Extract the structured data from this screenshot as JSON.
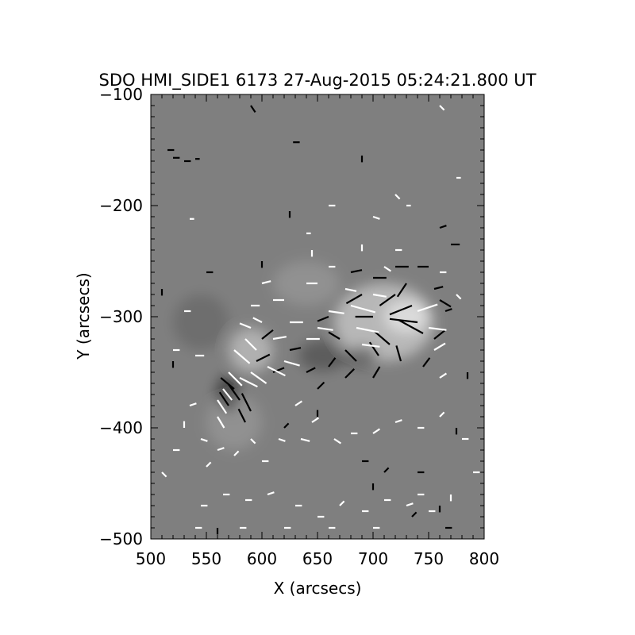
{
  "chart_data": {
    "type": "vector_magnetogram",
    "title": "SDO HMI_SIDE1 6173 27-Aug-2015 05:24:21.800 UT",
    "xlabel": "X (arcsecs)",
    "ylabel": "Y (arcsecs)",
    "xlim": [
      500,
      800
    ],
    "ylim": [
      -500,
      -100
    ],
    "x_ticks": [
      {
        "value": 500,
        "label": "500"
      },
      {
        "value": 550,
        "label": "550"
      },
      {
        "value": 600,
        "label": "600"
      },
      {
        "value": 650,
        "label": "650"
      },
      {
        "value": 700,
        "label": "700"
      },
      {
        "value": 750,
        "label": "750"
      },
      {
        "value": 800,
        "label": "800"
      }
    ],
    "y_ticks": [
      {
        "value": -100,
        "label": "−100"
      },
      {
        "value": -200,
        "label": "−200"
      },
      {
        "value": -300,
        "label": "−300"
      },
      {
        "value": -400,
        "label": "−400"
      },
      {
        "value": -500,
        "label": "−500"
      }
    ],
    "background_color": "#7f7f7f",
    "colors": {
      "positive_polarity": "#ffffff",
      "negative_polarity": "#000000"
    },
    "polarity_patches": [
      {
        "x": 710,
        "y": -305,
        "rx": 45,
        "ry": 35,
        "polarity": "positive",
        "strength": 0.8
      },
      {
        "x": 730,
        "y": -300,
        "rx": 20,
        "ry": 15,
        "polarity": "positive",
        "strength": 0.9
      },
      {
        "x": 590,
        "y": -330,
        "rx": 20,
        "ry": 20,
        "polarity": "positive",
        "strength": 0.7
      },
      {
        "x": 570,
        "y": -370,
        "rx": 12,
        "ry": 18,
        "polarity": "negative",
        "strength": 0.8
      },
      {
        "x": 655,
        "y": -335,
        "rx": 22,
        "ry": 14,
        "polarity": "negative",
        "strength": 0.5
      },
      {
        "x": 690,
        "y": -335,
        "rx": 15,
        "ry": 10,
        "polarity": "negative",
        "strength": 0.6
      },
      {
        "x": 575,
        "y": -395,
        "rx": 25,
        "ry": 25,
        "polarity": "positive",
        "strength": 0.25
      },
      {
        "x": 545,
        "y": -305,
        "rx": 25,
        "ry": 25,
        "polarity": "negative",
        "strength": 0.25
      },
      {
        "x": 640,
        "y": -270,
        "rx": 30,
        "ry": 20,
        "polarity": "positive",
        "strength": 0.25
      }
    ],
    "vectors": [
      {
        "x": 735,
        "y": -290,
        "dx": -20,
        "dy": -8,
        "color": "black"
      },
      {
        "x": 740,
        "y": -305,
        "dx": -25,
        "dy": 3,
        "color": "black"
      },
      {
        "x": 745,
        "y": -315,
        "dx": -22,
        "dy": 12,
        "color": "black"
      },
      {
        "x": 720,
        "y": -280,
        "dx": -14,
        "dy": -10,
        "color": "black"
      },
      {
        "x": 715,
        "y": -325,
        "dx": -14,
        "dy": 12,
        "color": "black"
      },
      {
        "x": 700,
        "y": -300,
        "dx": -16,
        "dy": 0,
        "color": "black"
      },
      {
        "x": 690,
        "y": -280,
        "dx": -14,
        "dy": -8,
        "color": "black"
      },
      {
        "x": 685,
        "y": -340,
        "dx": -10,
        "dy": 10,
        "color": "black"
      },
      {
        "x": 730,
        "y": -270,
        "dx": -8,
        "dy": -12,
        "color": "black"
      },
      {
        "x": 760,
        "y": -285,
        "dx": 10,
        "dy": -6,
        "color": "black"
      },
      {
        "x": 755,
        "y": -320,
        "dx": 10,
        "dy": 8,
        "color": "black"
      },
      {
        "x": 725,
        "y": -340,
        "dx": -4,
        "dy": 14,
        "color": "black"
      },
      {
        "x": 705,
        "y": -335,
        "dx": -8,
        "dy": 12,
        "color": "black"
      },
      {
        "x": 670,
        "y": -320,
        "dx": -10,
        "dy": 6,
        "color": "black"
      },
      {
        "x": 660,
        "y": -300,
        "dx": -10,
        "dy": -4,
        "color": "black"
      },
      {
        "x": 700,
        "y": -265,
        "dx": 12,
        "dy": 0,
        "color": "black"
      },
      {
        "x": 720,
        "y": -255,
        "dx": 12,
        "dy": 0,
        "color": "black"
      },
      {
        "x": 740,
        "y": -255,
        "dx": 10,
        "dy": 0,
        "color": "black"
      },
      {
        "x": 680,
        "y": -260,
        "dx": 10,
        "dy": 2,
        "color": "black"
      },
      {
        "x": 660,
        "y": -345,
        "dx": 6,
        "dy": 8,
        "color": "black"
      },
      {
        "x": 675,
        "y": -355,
        "dx": 8,
        "dy": 8,
        "color": "black"
      },
      {
        "x": 700,
        "y": -355,
        "dx": 6,
        "dy": 10,
        "color": "black"
      },
      {
        "x": 745,
        "y": -345,
        "dx": 6,
        "dy": 8,
        "color": "black"
      },
      {
        "x": 575,
        "y": -365,
        "dx": -12,
        "dy": 10,
        "color": "black"
      },
      {
        "x": 580,
        "y": -375,
        "dx": -10,
        "dy": 14,
        "color": "black"
      },
      {
        "x": 570,
        "y": -380,
        "dx": -8,
        "dy": 12,
        "color": "black"
      },
      {
        "x": 590,
        "y": -385,
        "dx": -8,
        "dy": 16,
        "color": "black"
      },
      {
        "x": 600,
        "y": -320,
        "dx": 10,
        "dy": 8,
        "color": "black"
      },
      {
        "x": 595,
        "y": -340,
        "dx": 12,
        "dy": 6,
        "color": "black"
      },
      {
        "x": 610,
        "y": -350,
        "dx": 10,
        "dy": 4,
        "color": "black"
      },
      {
        "x": 625,
        "y": -330,
        "dx": 10,
        "dy": 2,
        "color": "black"
      },
      {
        "x": 640,
        "y": -350,
        "dx": 8,
        "dy": 4,
        "color": "black"
      },
      {
        "x": 650,
        "y": -365,
        "dx": 6,
        "dy": 6,
        "color": "black"
      },
      {
        "x": 585,
        "y": -395,
        "dx": -6,
        "dy": 12,
        "color": "black"
      },
      {
        "x": 755,
        "y": -275,
        "dx": 8,
        "dy": 2,
        "color": "black"
      },
      {
        "x": 765,
        "y": -295,
        "dx": 6,
        "dy": 2,
        "color": "black"
      },
      {
        "x": 520,
        "y": -157,
        "dx": 6,
        "dy": 0,
        "color": "black"
      },
      {
        "x": 530,
        "y": -160,
        "dx": 6,
        "dy": 0,
        "color": "black"
      },
      {
        "x": 540,
        "y": -158,
        "dx": 4,
        "dy": 0,
        "color": "black"
      },
      {
        "x": 628,
        "y": -143,
        "dx": 6,
        "dy": 0,
        "color": "black"
      },
      {
        "x": 690,
        "y": -155,
        "dx": 0,
        "dy": -6,
        "color": "black"
      },
      {
        "x": 590,
        "y": -110,
        "dx": 4,
        "dy": -6,
        "color": "black"
      },
      {
        "x": 515,
        "y": -150,
        "dx": 6,
        "dy": 0,
        "color": "black"
      },
      {
        "x": 625,
        "y": -205,
        "dx": 0,
        "dy": -6,
        "color": "black"
      },
      {
        "x": 760,
        "y": -220,
        "dx": 6,
        "dy": 2,
        "color": "black"
      },
      {
        "x": 770,
        "y": -235,
        "dx": 8,
        "dy": 0,
        "color": "black"
      },
      {
        "x": 690,
        "y": -430,
        "dx": 6,
        "dy": 0,
        "color": "black"
      },
      {
        "x": 710,
        "y": -440,
        "dx": 4,
        "dy": 4,
        "color": "black"
      },
      {
        "x": 740,
        "y": -440,
        "dx": 6,
        "dy": 0,
        "color": "black"
      },
      {
        "x": 760,
        "y": -470,
        "dx": 0,
        "dy": -6,
        "color": "black"
      },
      {
        "x": 735,
        "y": -480,
        "dx": 4,
        "dy": 4,
        "color": "black"
      },
      {
        "x": 650,
        "y": -390,
        "dx": 0,
        "dy": 6,
        "color": "black"
      },
      {
        "x": 600,
        "y": -250,
        "dx": 0,
        "dy": -6,
        "color": "black"
      },
      {
        "x": 785,
        "y": -350,
        "dx": 0,
        "dy": -6,
        "color": "black"
      },
      {
        "x": 775,
        "y": -400,
        "dx": 0,
        "dy": -6,
        "color": "black"
      },
      {
        "x": 520,
        "y": -340,
        "dx": 0,
        "dy": -6,
        "color": "black"
      },
      {
        "x": 560,
        "y": -490,
        "dx": 0,
        "dy": -6,
        "color": "black"
      },
      {
        "x": 620,
        "y": -400,
        "dx": 4,
        "dy": 4,
        "color": "black"
      },
      {
        "x": 550,
        "y": -260,
        "dx": 6,
        "dy": 0,
        "color": "black"
      },
      {
        "x": 510,
        "y": -275,
        "dx": 0,
        "dy": -6,
        "color": "black"
      },
      {
        "x": 765,
        "y": -490,
        "dx": 6,
        "dy": 0,
        "color": "black"
      },
      {
        "x": 700,
        "y": -450,
        "dx": 0,
        "dy": -6,
        "color": "black"
      },
      {
        "x": 680,
        "y": -290,
        "dx": 22,
        "dy": -6,
        "color": "white"
      },
      {
        "x": 685,
        "y": -310,
        "dx": 20,
        "dy": -4,
        "color": "white"
      },
      {
        "x": 690,
        "y": -325,
        "dx": 16,
        "dy": -2,
        "color": "white"
      },
      {
        "x": 660,
        "y": -295,
        "dx": 14,
        "dy": -2,
        "color": "white"
      },
      {
        "x": 650,
        "y": -310,
        "dx": 14,
        "dy": -2,
        "color": "white"
      },
      {
        "x": 640,
        "y": -320,
        "dx": 12,
        "dy": 0,
        "color": "white"
      },
      {
        "x": 625,
        "y": -305,
        "dx": 12,
        "dy": 0,
        "color": "white"
      },
      {
        "x": 610,
        "y": -320,
        "dx": 12,
        "dy": 2,
        "color": "white"
      },
      {
        "x": 620,
        "y": -340,
        "dx": 14,
        "dy": -4,
        "color": "white"
      },
      {
        "x": 605,
        "y": -345,
        "dx": 16,
        "dy": -8,
        "color": "white"
      },
      {
        "x": 585,
        "y": -320,
        "dx": 10,
        "dy": -10,
        "color": "white"
      },
      {
        "x": 575,
        "y": -330,
        "dx": 14,
        "dy": -12,
        "color": "white"
      },
      {
        "x": 590,
        "y": -350,
        "dx": 14,
        "dy": -10,
        "color": "white"
      },
      {
        "x": 580,
        "y": -355,
        "dx": 16,
        "dy": -8,
        "color": "white"
      },
      {
        "x": 570,
        "y": -350,
        "dx": 12,
        "dy": -12,
        "color": "white"
      },
      {
        "x": 590,
        "y": -310,
        "dx": -10,
        "dy": 4,
        "color": "white"
      },
      {
        "x": 600,
        "y": -305,
        "dx": -8,
        "dy": 4,
        "color": "white"
      },
      {
        "x": 565,
        "y": -365,
        "dx": 8,
        "dy": -10,
        "color": "white"
      },
      {
        "x": 560,
        "y": -375,
        "dx": 8,
        "dy": -12,
        "color": "white"
      },
      {
        "x": 560,
        "y": -390,
        "dx": 6,
        "dy": -10,
        "color": "white"
      },
      {
        "x": 750,
        "y": -310,
        "dx": 16,
        "dy": -2,
        "color": "white"
      },
      {
        "x": 740,
        "y": -295,
        "dx": 18,
        "dy": 6,
        "color": "white"
      },
      {
        "x": 755,
        "y": -330,
        "dx": 10,
        "dy": 6,
        "color": "white"
      },
      {
        "x": 700,
        "y": -280,
        "dx": 12,
        "dy": -2,
        "color": "white"
      },
      {
        "x": 675,
        "y": -275,
        "dx": 10,
        "dy": -2,
        "color": "white"
      },
      {
        "x": 640,
        "y": -270,
        "dx": 10,
        "dy": 0,
        "color": "white"
      },
      {
        "x": 610,
        "y": -285,
        "dx": 10,
        "dy": 0,
        "color": "white"
      },
      {
        "x": 590,
        "y": -290,
        "dx": 8,
        "dy": 0,
        "color": "white"
      },
      {
        "x": 600,
        "y": -270,
        "dx": 8,
        "dy": 2,
        "color": "white"
      },
      {
        "x": 640,
        "y": -225,
        "dx": 4,
        "dy": 0,
        "color": "white"
      },
      {
        "x": 645,
        "y": -240,
        "dx": 0,
        "dy": -6,
        "color": "white"
      },
      {
        "x": 660,
        "y": -255,
        "dx": 6,
        "dy": 0,
        "color": "white"
      },
      {
        "x": 710,
        "y": -255,
        "dx": 6,
        "dy": -4,
        "color": "white"
      },
      {
        "x": 720,
        "y": -240,
        "dx": 6,
        "dy": 0,
        "color": "white"
      },
      {
        "x": 720,
        "y": -190,
        "dx": 4,
        "dy": -4,
        "color": "white"
      },
      {
        "x": 730,
        "y": -200,
        "dx": 4,
        "dy": 0,
        "color": "white"
      },
      {
        "x": 660,
        "y": -200,
        "dx": 6,
        "dy": 0,
        "color": "white"
      },
      {
        "x": 700,
        "y": -210,
        "dx": 6,
        "dy": -2,
        "color": "white"
      },
      {
        "x": 690,
        "y": -235,
        "dx": 0,
        "dy": -6,
        "color": "white"
      },
      {
        "x": 760,
        "y": -260,
        "dx": 6,
        "dy": 0,
        "color": "white"
      },
      {
        "x": 775,
        "y": -280,
        "dx": 4,
        "dy": -4,
        "color": "white"
      },
      {
        "x": 530,
        "y": -295,
        "dx": 6,
        "dy": 0,
        "color": "white"
      },
      {
        "x": 520,
        "y": -330,
        "dx": 6,
        "dy": 0,
        "color": "white"
      },
      {
        "x": 540,
        "y": -335,
        "dx": 8,
        "dy": 0,
        "color": "white"
      },
      {
        "x": 535,
        "y": -380,
        "dx": 6,
        "dy": 2,
        "color": "white"
      },
      {
        "x": 530,
        "y": -400,
        "dx": 0,
        "dy": 6,
        "color": "white"
      },
      {
        "x": 545,
        "y": -410,
        "dx": 6,
        "dy": -2,
        "color": "white"
      },
      {
        "x": 550,
        "y": -435,
        "dx": 4,
        "dy": 4,
        "color": "white"
      },
      {
        "x": 520,
        "y": -420,
        "dx": 6,
        "dy": 0,
        "color": "white"
      },
      {
        "x": 510,
        "y": -440,
        "dx": 4,
        "dy": -4,
        "color": "white"
      },
      {
        "x": 560,
        "y": -420,
        "dx": 6,
        "dy": 2,
        "color": "white"
      },
      {
        "x": 575,
        "y": -425,
        "dx": 4,
        "dy": 4,
        "color": "white"
      },
      {
        "x": 590,
        "y": -410,
        "dx": 4,
        "dy": -4,
        "color": "white"
      },
      {
        "x": 600,
        "y": -430,
        "dx": 6,
        "dy": 0,
        "color": "white"
      },
      {
        "x": 615,
        "y": -410,
        "dx": 6,
        "dy": -2,
        "color": "white"
      },
      {
        "x": 635,
        "y": -410,
        "dx": 8,
        "dy": -2,
        "color": "white"
      },
      {
        "x": 645,
        "y": -395,
        "dx": 6,
        "dy": 4,
        "color": "white"
      },
      {
        "x": 665,
        "y": -410,
        "dx": 6,
        "dy": -4,
        "color": "white"
      },
      {
        "x": 680,
        "y": -405,
        "dx": 6,
        "dy": 0,
        "color": "white"
      },
      {
        "x": 700,
        "y": -405,
        "dx": 6,
        "dy": 4,
        "color": "white"
      },
      {
        "x": 720,
        "y": -395,
        "dx": 6,
        "dy": 2,
        "color": "white"
      },
      {
        "x": 740,
        "y": -400,
        "dx": 6,
        "dy": 0,
        "color": "white"
      },
      {
        "x": 760,
        "y": -390,
        "dx": 4,
        "dy": 4,
        "color": "white"
      },
      {
        "x": 780,
        "y": -410,
        "dx": 6,
        "dy": 0,
        "color": "white"
      },
      {
        "x": 790,
        "y": -440,
        "dx": 6,
        "dy": 0,
        "color": "white"
      },
      {
        "x": 770,
        "y": -460,
        "dx": 0,
        "dy": -6,
        "color": "white"
      },
      {
        "x": 750,
        "y": -475,
        "dx": 6,
        "dy": 0,
        "color": "white"
      },
      {
        "x": 730,
        "y": -470,
        "dx": 6,
        "dy": 2,
        "color": "white"
      },
      {
        "x": 710,
        "y": -465,
        "dx": 6,
        "dy": 0,
        "color": "white"
      },
      {
        "x": 690,
        "y": -475,
        "dx": 6,
        "dy": 0,
        "color": "white"
      },
      {
        "x": 670,
        "y": -470,
        "dx": 4,
        "dy": 4,
        "color": "white"
      },
      {
        "x": 650,
        "y": -480,
        "dx": 6,
        "dy": 0,
        "color": "white"
      },
      {
        "x": 630,
        "y": -470,
        "dx": 6,
        "dy": 0,
        "color": "white"
      },
      {
        "x": 605,
        "y": -460,
        "dx": 6,
        "dy": 2,
        "color": "white"
      },
      {
        "x": 585,
        "y": -465,
        "dx": 6,
        "dy": 0,
        "color": "white"
      },
      {
        "x": 565,
        "y": -460,
        "dx": 6,
        "dy": 0,
        "color": "white"
      },
      {
        "x": 545,
        "y": -470,
        "dx": 6,
        "dy": 0,
        "color": "white"
      },
      {
        "x": 540,
        "y": -490,
        "dx": 6,
        "dy": 0,
        "color": "white"
      },
      {
        "x": 580,
        "y": -490,
        "dx": 6,
        "dy": 0,
        "color": "white"
      },
      {
        "x": 620,
        "y": -490,
        "dx": 6,
        "dy": 0,
        "color": "white"
      },
      {
        "x": 660,
        "y": -490,
        "dx": 6,
        "dy": 0,
        "color": "white"
      },
      {
        "x": 700,
        "y": -490,
        "dx": 6,
        "dy": 0,
        "color": "white"
      },
      {
        "x": 740,
        "y": -460,
        "dx": 6,
        "dy": 0,
        "color": "white"
      },
      {
        "x": 760,
        "y": -110,
        "dx": 4,
        "dy": -4,
        "color": "white"
      },
      {
        "x": 775,
        "y": -175,
        "dx": 4,
        "dy": 0,
        "color": "white"
      },
      {
        "x": 535,
        "y": -212,
        "dx": 4,
        "dy": 0,
        "color": "white"
      },
      {
        "x": 630,
        "y": -380,
        "dx": 6,
        "dy": 4,
        "color": "white"
      },
      {
        "x": 760,
        "y": -355,
        "dx": 6,
        "dy": 4,
        "color": "white"
      }
    ]
  }
}
